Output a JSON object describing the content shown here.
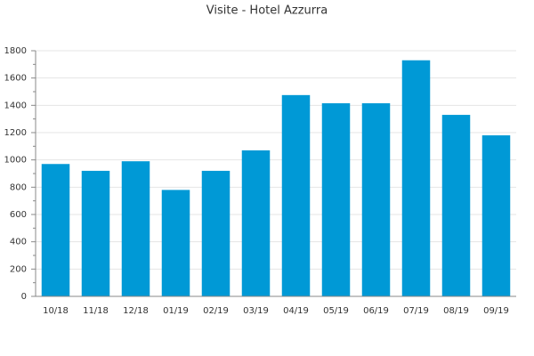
{
  "chart_data": {
    "type": "bar",
    "title": "Visite - Hotel Azzurra",
    "categories": [
      "10/18",
      "11/18",
      "12/18",
      "01/19",
      "02/19",
      "03/19",
      "04/19",
      "05/19",
      "06/19",
      "07/19",
      "08/19",
      "09/19"
    ],
    "values": [
      970,
      920,
      990,
      780,
      920,
      1070,
      1475,
      1415,
      1415,
      1730,
      1330,
      1180
    ],
    "color": "#0099d6",
    "ylim": [
      0,
      1800
    ],
    "yticks": [
      0,
      200,
      400,
      600,
      800,
      1000,
      1200,
      1400,
      1600,
      1800
    ],
    "grid": true
  }
}
